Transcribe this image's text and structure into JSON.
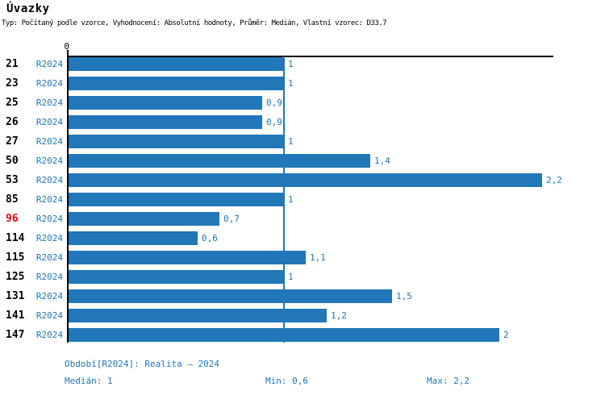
{
  "header": {
    "title": "Úvazky",
    "subtitle": "Typ: Počítaný podle vzorce, Vyhodnocení: Absolutní hodnoty, Průměr: Medián, Vlastní vzorec: D33.7"
  },
  "chart_data": {
    "type": "bar",
    "orientation": "horizontal",
    "title": "Úvazky",
    "categories": [
      "21",
      "23",
      "25",
      "26",
      "27",
      "50",
      "53",
      "85",
      "96",
      "114",
      "115",
      "125",
      "131",
      "141",
      "147"
    ],
    "row_period_label": "R2024",
    "series": [
      {
        "name": "R2024",
        "values": [
          1,
          1,
          0.9,
          0.9,
          1,
          1.4,
          2.2,
          1,
          0.7,
          0.6,
          1.1,
          1,
          1.5,
          1.2,
          2
        ],
        "labels": [
          "1",
          "1",
          "0,9",
          "0,9",
          "1",
          "1,4",
          "2,2",
          "1",
          "0,7",
          "0,6",
          "1,1",
          "1",
          "1,5",
          "1,2",
          "2"
        ]
      }
    ],
    "highlighted_category": "96",
    "median_line_value": 1,
    "axis": {
      "origin_label": "0",
      "xmin": 0,
      "xmax": 2.25,
      "grid": false,
      "value_decimal_separator": ","
    }
  },
  "footer": {
    "period_info": "Období[R2024]: Realita – 2024",
    "median": "Medián: 1",
    "min": "Min: 0,6",
    "max": "Max: 2,2"
  },
  "colors": {
    "bar": "#2277B8",
    "accent_text": "#2277B8",
    "highlight_text": "#E30613",
    "axis": "#000000"
  }
}
